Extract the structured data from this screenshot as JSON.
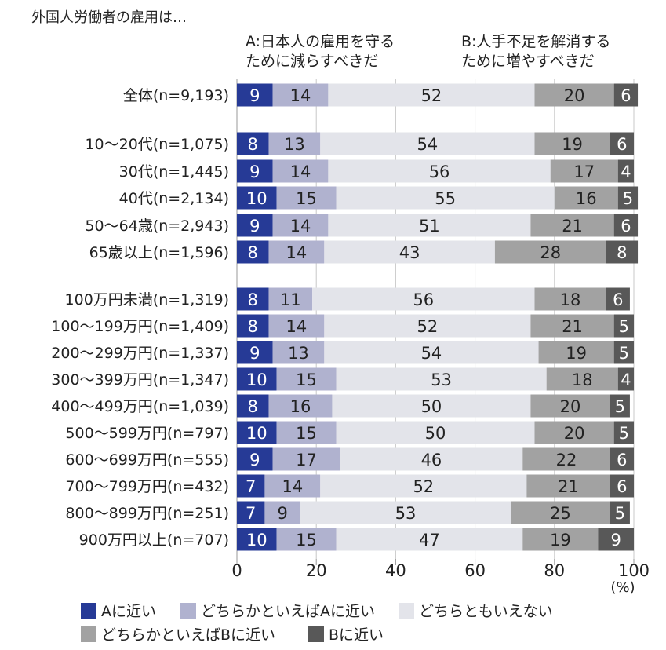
{
  "chart_data": {
    "type": "bar",
    "orientation": "horizontal",
    "stacked": true,
    "title": "外国人労働者の雇用は…",
    "header_a": [
      "A:日本人の雇用を守る",
      "ために減らすべきだ"
    ],
    "header_b": [
      "B:人手不足を解消する",
      "ために増やすべきだ"
    ],
    "xlim": [
      0,
      100
    ],
    "xticks": [
      "0",
      "20",
      "40",
      "60",
      "80",
      "100"
    ],
    "xunit": "(%)",
    "grid": true,
    "legend_position": "bottom",
    "colors": [
      "#263a96",
      "#b0b2cf",
      "#e3e4ea",
      "#a2a2a2",
      "#585858"
    ],
    "label_colors": [
      "#ffffff",
      "#222222",
      "#222222",
      "#222222",
      "#ffffff"
    ],
    "series_names": [
      "Aに近い",
      "どちらかといえばAに近い",
      "どちらともいえない",
      "どちらかといえばBに近い",
      "Bに近い"
    ],
    "categories": [
      "全体(n=9,193)",
      "10〜20代(n=1,075)",
      "30代(n=1,445)",
      "40代(n=2,134)",
      "50〜64歳(n=2,943)",
      "65歳以上(n=1,596)",
      "100万円未満(n=1,319)",
      "100〜199万円(n=1,409)",
      "200〜299万円(n=1,337)",
      "300〜399万円(n=1,347)",
      "400〜499万円(n=1,039)",
      "500〜599万円(n=797)",
      "600〜699万円(n=555)",
      "700〜799万円(n=432)",
      "800〜899万円(n=251)",
      "900万円以上(n=707)"
    ],
    "values": [
      [
        9,
        14,
        52,
        20,
        6
      ],
      [
        8,
        13,
        54,
        19,
        6
      ],
      [
        9,
        14,
        56,
        17,
        4
      ],
      [
        10,
        15,
        55,
        16,
        5
      ],
      [
        9,
        14,
        51,
        21,
        6
      ],
      [
        8,
        14,
        43,
        28,
        8
      ],
      [
        8,
        11,
        56,
        18,
        6
      ],
      [
        8,
        14,
        52,
        21,
        5
      ],
      [
        9,
        13,
        54,
        19,
        5
      ],
      [
        10,
        15,
        53,
        18,
        4
      ],
      [
        8,
        16,
        50,
        20,
        5
      ],
      [
        10,
        15,
        50,
        20,
        5
      ],
      [
        9,
        17,
        46,
        22,
        6
      ],
      [
        7,
        14,
        52,
        21,
        6
      ],
      [
        7,
        9,
        53,
        25,
        5
      ],
      [
        10,
        15,
        47,
        19,
        9
      ]
    ]
  }
}
